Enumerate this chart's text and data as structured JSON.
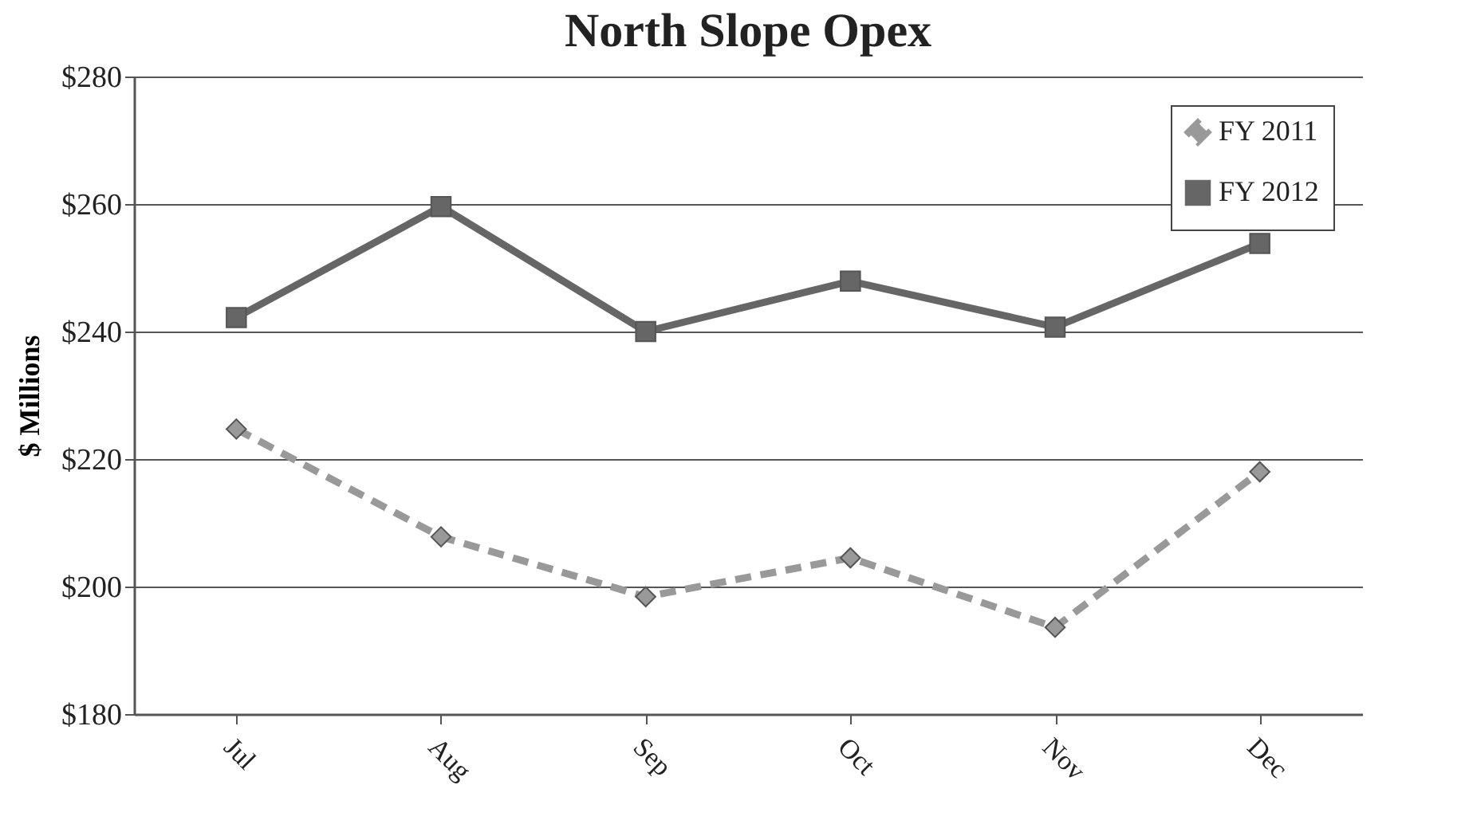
{
  "chart_data": {
    "type": "line",
    "title": "North Slope Opex",
    "ylabel": "$ Millions",
    "categories": [
      "Jul",
      "Aug",
      "Sep",
      "Oct",
      "Nov",
      "Dec"
    ],
    "series": [
      {
        "name": "FY 2011",
        "color": "#999999",
        "marker": "diamond",
        "line_style": "dashed",
        "values": [
          224.7,
          207.8,
          198.4,
          204.5,
          193.6,
          218
        ]
      },
      {
        "name": "FY 2012",
        "color": "#666666",
        "marker": "square",
        "line_style": "solid",
        "values": [
          242.2,
          259.6,
          240,
          247.9,
          240.7,
          253.8
        ]
      }
    ],
    "ylim": [
      180,
      280
    ],
    "yticks": [
      {
        "value": 180,
        "label": "$180"
      },
      {
        "value": 200,
        "label": "$200"
      },
      {
        "value": 220,
        "label": "$220"
      },
      {
        "value": 240,
        "label": "$240"
      },
      {
        "value": 260,
        "label": "$260"
      },
      {
        "value": 280,
        "label": "$280"
      }
    ],
    "grid": "y",
    "legend": "top right"
  }
}
